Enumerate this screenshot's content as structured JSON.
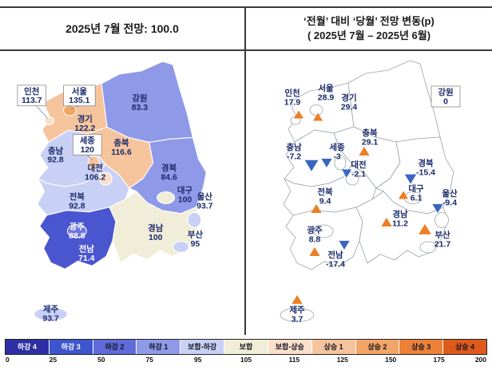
{
  "colors": {
    "up_triangle": "#EE7E23",
    "down_triangle": "#3A66C0",
    "label_text": "#1B2A6B",
    "label_text_light": "#FFFFFF",
    "left_map_stroke": "#FFFFFF",
    "right_map_stroke": "#9AA3AE",
    "table_border": "#3A3A3A"
  },
  "chart_data": [
    {
      "type": "heatmap",
      "map": "south-korea-provinces",
      "title": "2025년 7월 전망: 100.0",
      "scale_min": 0,
      "scale_max": 200,
      "regions": [
        {
          "id": "gyeonggi",
          "name": "경기",
          "value": 122.2,
          "fill": "#F6C49C"
        },
        {
          "id": "gangwon",
          "name": "강원",
          "value": 83.3,
          "fill": "#8E99E8"
        },
        {
          "id": "chungbuk",
          "name": "충북",
          "value": 116.6,
          "fill": "#F6C49C"
        },
        {
          "id": "chungnam",
          "name": "충남",
          "value": 92.8,
          "fill": "#C8D0F5"
        },
        {
          "id": "gyeongbuk",
          "name": "경북",
          "value": 84.6,
          "fill": "#8E99E8"
        },
        {
          "id": "jeonbuk",
          "name": "전북",
          "value": 92.8,
          "fill": "#C8D0F5"
        },
        {
          "id": "jeonnam",
          "name": "전남",
          "value": 71.4,
          "fill": "#4A55D0",
          "text_color": "#FFFFFF"
        },
        {
          "id": "gyeongnam",
          "name": "경남",
          "value": 100,
          "fill": "#F0EDD8"
        },
        {
          "id": "jeju",
          "name": "제주",
          "value": 93.7,
          "fill": "#C8D0F5"
        },
        {
          "id": "seoul",
          "name": "서울",
          "value": 135.1,
          "fill": "#F2A566"
        },
        {
          "id": "incheon",
          "name": "인천",
          "value": 113.7,
          "fill": "#FAE0CB"
        },
        {
          "id": "sejong",
          "name": "세종",
          "value": 120,
          "fill": "#F6C49C"
        },
        {
          "id": "daejeon",
          "name": "대전",
          "value": 106.2,
          "fill": "#FAE0CB"
        },
        {
          "id": "daegu",
          "name": "대구",
          "value": 100,
          "fill": "#F0EDD8"
        },
        {
          "id": "gwangju",
          "name": "광주",
          "value": 88.8,
          "fill": "#6B78DE",
          "text_color": "#FFFFFF"
        },
        {
          "id": "ulsan",
          "name": "울산",
          "value": 93.7,
          "fill": "#C8D0F5"
        },
        {
          "id": "busan",
          "name": "부산",
          "value": 95,
          "fill": "#C8D0F5"
        }
      ]
    },
    {
      "type": "heatmap",
      "map": "south-korea-provinces",
      "title": "‘전월’ 대비 ‘당월’ 전망 변동(p)",
      "subtitle": "( 2025년 7월 –  2025년 6월)",
      "regions": [
        {
          "id": "gyeonggi",
          "name": "경기",
          "value": 29.4,
          "direction": "up"
        },
        {
          "id": "gangwon",
          "name": "강원",
          "value": 0,
          "direction": "none"
        },
        {
          "id": "chungbuk",
          "name": "충북",
          "value": 29.1,
          "direction": "up"
        },
        {
          "id": "chungnam",
          "name": "충남",
          "value": -7.2,
          "direction": "down"
        },
        {
          "id": "gyeongbuk",
          "name": "경북",
          "value": -15.4,
          "direction": "down"
        },
        {
          "id": "jeonbuk",
          "name": "전북",
          "value": 9.4,
          "direction": "up"
        },
        {
          "id": "jeonnam",
          "name": "전남",
          "value": -17.4,
          "direction": "down"
        },
        {
          "id": "gyeongnam",
          "name": "경남",
          "value": 11.2,
          "direction": "up"
        },
        {
          "id": "jeju",
          "name": "제주",
          "value": 3.7,
          "direction": "up"
        },
        {
          "id": "seoul",
          "name": "서울",
          "value": 28.9,
          "direction": "up"
        },
        {
          "id": "incheon",
          "name": "인천",
          "value": 17.9,
          "direction": "up"
        },
        {
          "id": "sejong",
          "name": "세종",
          "value": -3,
          "direction": "down"
        },
        {
          "id": "daejeon",
          "name": "대전",
          "value": -2.1,
          "direction": "down"
        },
        {
          "id": "daegu",
          "name": "대구",
          "value": 6.1,
          "direction": "up"
        },
        {
          "id": "gwangju",
          "name": "광주",
          "value": 8.8,
          "direction": "up"
        },
        {
          "id": "ulsan",
          "name": "울산",
          "value": -9.4,
          "direction": "down"
        },
        {
          "id": "busan",
          "name": "부산",
          "value": 21.7,
          "direction": "up"
        }
      ]
    }
  ],
  "legend": {
    "items": [
      {
        "label": "하강 4",
        "color": "#2E2FA4",
        "text": "#FFFFFF"
      },
      {
        "label": "하강 3",
        "color": "#3D55CD",
        "text": "#FFFFFF"
      },
      {
        "label": "하강 2",
        "color": "#5E6BD8",
        "text": "#10131F"
      },
      {
        "label": "하강 1",
        "color": "#8E99E8",
        "text": "#10131F"
      },
      {
        "label": "보합-하강",
        "color": "#C8D0F5",
        "text": "#10131F"
      },
      {
        "label": "보합",
        "color": "#F0EDD8",
        "text": "#10131F"
      },
      {
        "label": "보합-상승",
        "color": "#FAE0CB",
        "text": "#10131F"
      },
      {
        "label": "상승 1",
        "color": "#F6C49C",
        "text": "#10131F"
      },
      {
        "label": "상승 2",
        "color": "#F2A566",
        "text": "#10131F"
      },
      {
        "label": "상승 3",
        "color": "#EC8138",
        "text": "#10131F"
      },
      {
        "label": "상승 4",
        "color": "#DE5A1C",
        "text": "#10131F"
      }
    ],
    "scale": [
      0,
      25,
      50,
      75,
      95,
      105,
      115,
      125,
      150,
      175,
      200
    ]
  }
}
